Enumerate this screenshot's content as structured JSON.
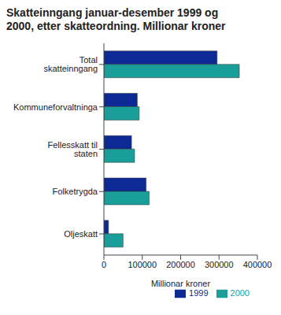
{
  "chart_data": {
    "type": "bar",
    "title": "Skatteinngang januar-desember 1999 og 2000, etter skatteordning. Millionar kroner",
    "orientation": "horizontal",
    "categories": [
      "Total skatteinngang",
      "Kommuneforvaltninga",
      "Fellesskatt til staten",
      "Folketrygda",
      "Oljeskatt"
    ],
    "series": [
      {
        "name": "1999",
        "color": "#0d2a94",
        "values": [
          295000,
          87000,
          72000,
          110000,
          12000
        ]
      },
      {
        "name": "2000",
        "color": "#1a9e9a",
        "values": [
          353000,
          92000,
          80000,
          118000,
          50000
        ]
      }
    ],
    "xlabel": "Millionar kroner",
    "xlim": [
      0,
      400000
    ],
    "xticks": [
      0,
      100000,
      200000,
      300000,
      400000
    ],
    "grid": false,
    "legend": "bottom"
  }
}
